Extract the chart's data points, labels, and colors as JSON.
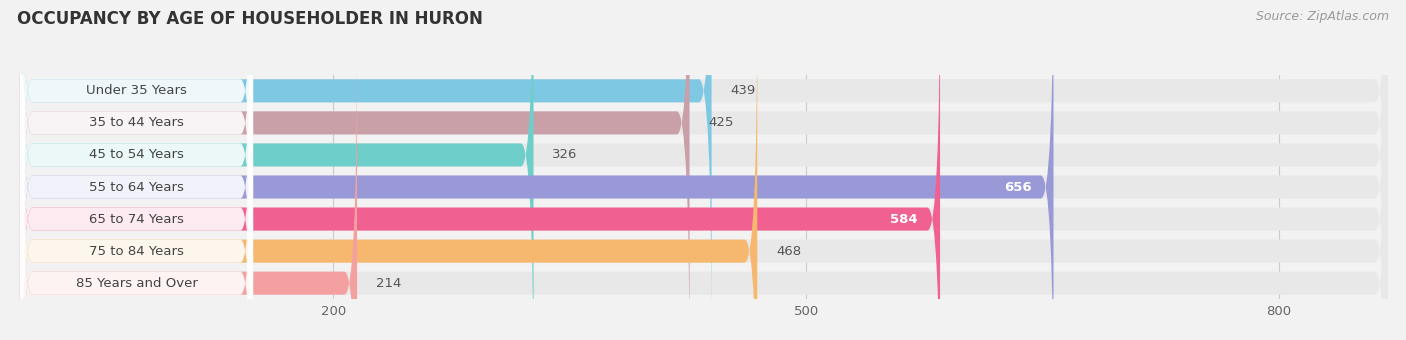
{
  "title": "OCCUPANCY BY AGE OF HOUSEHOLDER IN HURON",
  "source": "Source: ZipAtlas.com",
  "categories": [
    "Under 35 Years",
    "35 to 44 Years",
    "45 to 54 Years",
    "55 to 64 Years",
    "65 to 74 Years",
    "75 to 84 Years",
    "85 Years and Over"
  ],
  "values": [
    439,
    425,
    326,
    656,
    584,
    468,
    214
  ],
  "colors": [
    "#7ec8e3",
    "#c9a0a8",
    "#6ecec9",
    "#9999d8",
    "#f06090",
    "#f5b86e",
    "#f4a0a0"
  ],
  "xlim_max": 870,
  "xticks": [
    200,
    500,
    800
  ],
  "background_color": "#f2f2f2",
  "bar_bg_color": "#e8e8e8",
  "title_fontsize": 12,
  "label_fontsize": 9.5,
  "tick_fontsize": 9.5,
  "value_fontsize": 9.5,
  "source_fontsize": 9
}
